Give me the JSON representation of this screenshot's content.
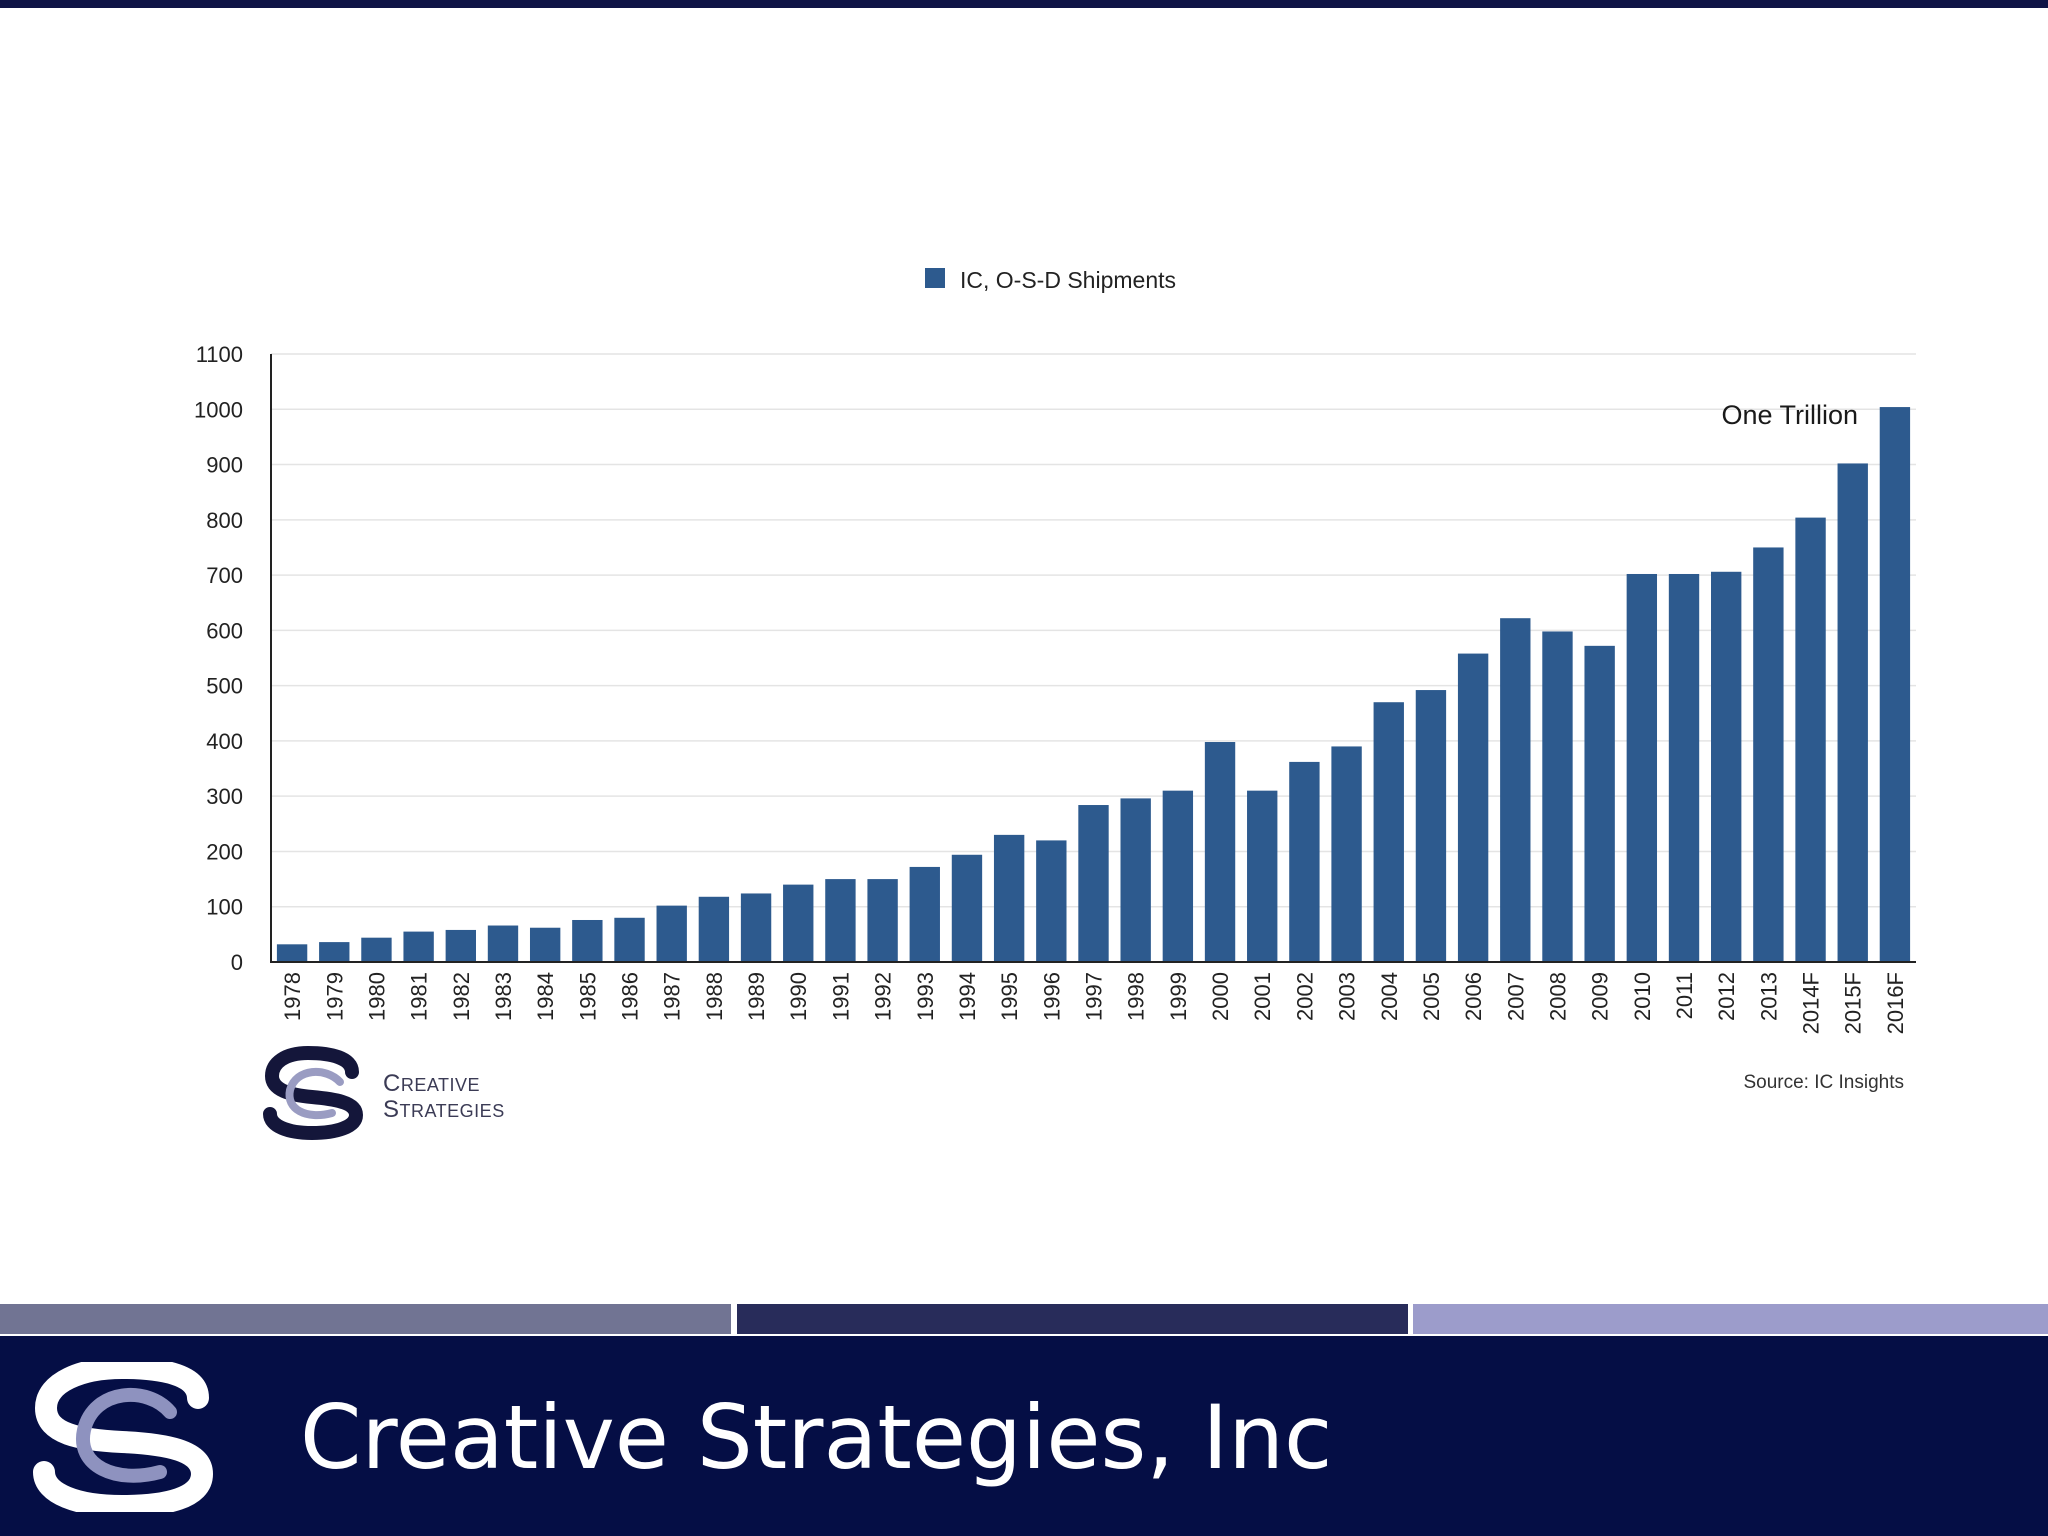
{
  "chart_data": {
    "type": "bar",
    "legend": {
      "position": "top-center"
    },
    "categories": [
      "1978",
      "1979",
      "1980",
      "1981",
      "1982",
      "1983",
      "1984",
      "1985",
      "1986",
      "1987",
      "1988",
      "1989",
      "1990",
      "1991",
      "1992",
      "1993",
      "1994",
      "1995",
      "1996",
      "1997",
      "1998",
      "1999",
      "2000",
      "2001",
      "2002",
      "2003",
      "2004",
      "2005",
      "2006",
      "2007",
      "2008",
      "2009",
      "2010",
      "2011",
      "2012",
      "2013",
      "2014F",
      "2015F",
      "2016F"
    ],
    "series": [
      {
        "name": "IC, O-S-D Shipments",
        "color": "#2d5a8e",
        "values": [
          32,
          36,
          44,
          55,
          58,
          66,
          62,
          76,
          80,
          102,
          118,
          124,
          140,
          150,
          150,
          172,
          194,
          230,
          220,
          284,
          296,
          310,
          398,
          310,
          362,
          390,
          470,
          492,
          558,
          622,
          598,
          572,
          702,
          702,
          706,
          750,
          804,
          902,
          1004
        ]
      }
    ],
    "ylim": [
      0,
      1100
    ],
    "yticks": [
      0,
      100,
      200,
      300,
      400,
      500,
      600,
      700,
      800,
      900,
      1000,
      1100
    ],
    "grid": true,
    "annotations": [
      {
        "text": "One Trillion"
      }
    ],
    "source_note": "Source: IC Insights"
  },
  "chart_logo": {
    "line1": "Creative",
    "line2": "Strategies"
  },
  "footer": {
    "title": "Creative Strategies, Inc"
  },
  "colors": {
    "bar": "#2d5a8e",
    "top_rule": "#0f1446",
    "band_1": "#717493",
    "band_2": "#282c5a",
    "band_3": "#9c9ccb",
    "footer_bg": "#050e45"
  }
}
